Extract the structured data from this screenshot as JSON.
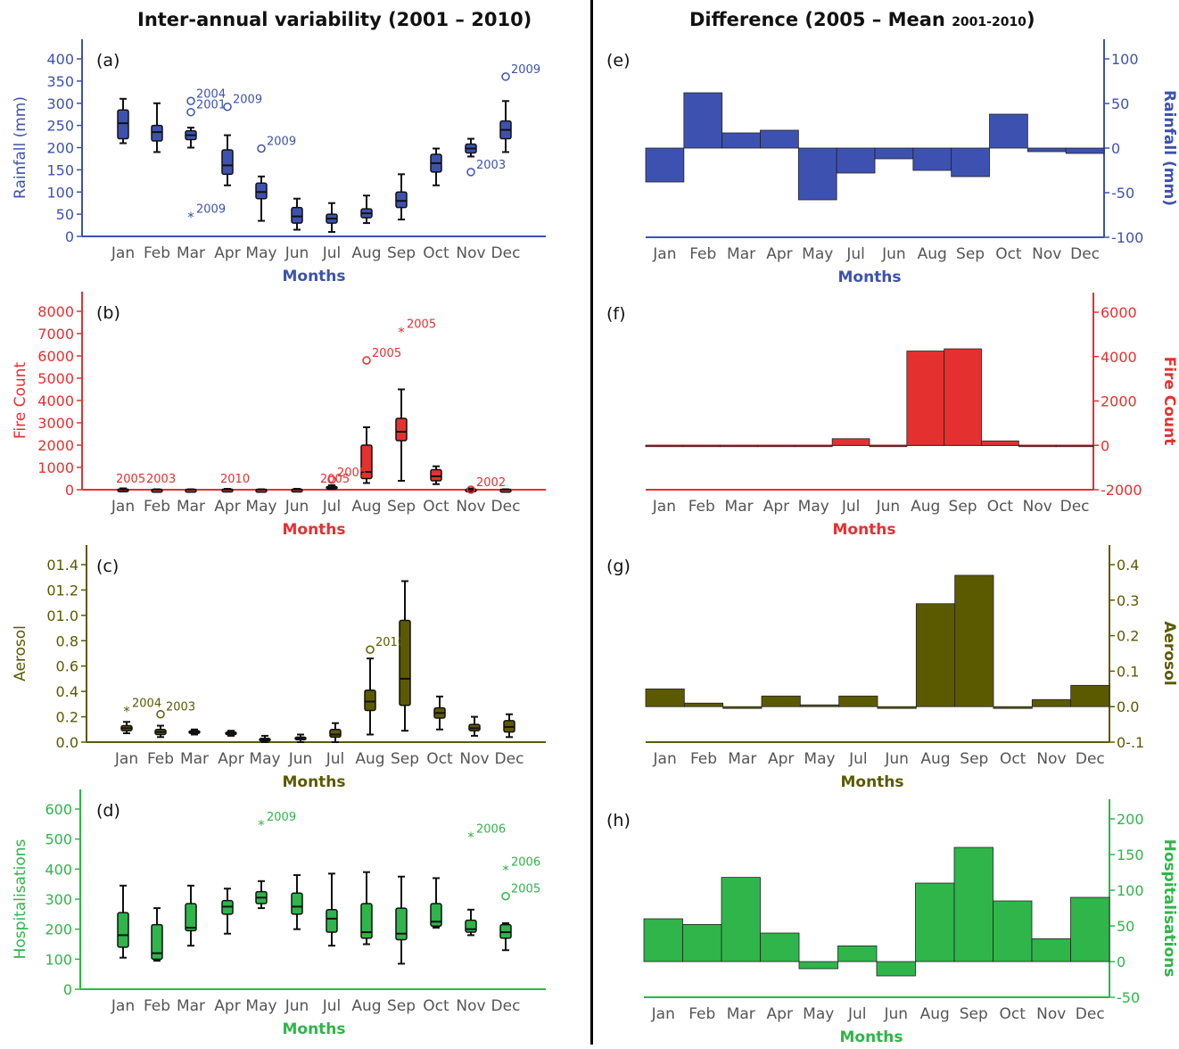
{
  "titles": {
    "left": "Inter-annual variability (2001 – 2010)",
    "right_main": "Difference (2005 – Mean ",
    "right_sub": "2001-2010",
    "right_end": ")"
  },
  "xlabel": "Months",
  "months_left": [
    "Jan",
    "Feb",
    "Mar",
    "Apr",
    "May",
    "Jun",
    "Jul",
    "Aug",
    "Sep",
    "Oct",
    "Nov",
    "Dec"
  ],
  "months_right_e": [
    "Jan",
    "Feb",
    "Mar",
    "Apr",
    "May",
    "Jul",
    "Jun",
    "Aug",
    "Sep",
    "Oct",
    "Nov",
    "Dec"
  ],
  "months_right": [
    "Jan",
    "Feb",
    "Mar",
    "Apr",
    "May",
    "Jul",
    "Jun",
    "Aug",
    "Sep",
    "Oct",
    "Nov",
    "Dec"
  ],
  "colors": {
    "rainfall": "#3d52b0",
    "fire": "#e53030",
    "aerosol": "#5c5a00",
    "hosp": "#2fb54a"
  },
  "chart_data": [
    {
      "panel": "(a)",
      "type": "box",
      "ylabel": "Rainfall (mm)",
      "xlabel": "Months",
      "ylim": [
        0,
        400
      ],
      "yticks": [
        0,
        50,
        100,
        150,
        200,
        250,
        300,
        350,
        400
      ],
      "ytick_labels": [
        "0",
        "50",
        "100",
        "150",
        "200",
        "250",
        "300",
        "350",
        "400"
      ],
      "boxes": [
        {
          "min": 210,
          "q1": 220,
          "median": 255,
          "q3": 285,
          "max": 310
        },
        {
          "min": 190,
          "q1": 215,
          "median": 235,
          "q3": 250,
          "max": 300
        },
        {
          "min": 200,
          "q1": 218,
          "median": 228,
          "q3": 238,
          "max": 245
        },
        {
          "min": 115,
          "q1": 140,
          "median": 160,
          "q3": 195,
          "max": 228
        },
        {
          "min": 35,
          "q1": 85,
          "median": 100,
          "q3": 120,
          "max": 135
        },
        {
          "min": 15,
          "q1": 30,
          "median": 45,
          "q3": 65,
          "max": 85
        },
        {
          "min": 10,
          "q1": 30,
          "median": 40,
          "q3": 50,
          "max": 75
        },
        {
          "min": 30,
          "q1": 42,
          "median": 52,
          "q3": 62,
          "max": 92
        },
        {
          "min": 38,
          "q1": 65,
          "median": 80,
          "q3": 100,
          "max": 140
        },
        {
          "min": 115,
          "q1": 145,
          "median": 165,
          "q3": 185,
          "max": 198
        },
        {
          "min": 180,
          "q1": 188,
          "median": 198,
          "q3": 208,
          "max": 220
        },
        {
          "min": 190,
          "q1": 220,
          "median": 240,
          "q3": 260,
          "max": 305
        }
      ],
      "outliers": [
        {
          "month": 2,
          "y": 305,
          "marker": "circle",
          "label": "2004"
        },
        {
          "month": 2,
          "y": 280,
          "marker": "circle",
          "label": "2001"
        },
        {
          "month": 2,
          "y": 45,
          "marker": "star",
          "label": "2009"
        },
        {
          "month": 3,
          "y": 292,
          "marker": "circle",
          "label": "2009"
        },
        {
          "month": 4,
          "y": 198,
          "marker": "circle",
          "label": "2009"
        },
        {
          "month": 10,
          "y": 145,
          "marker": "circle",
          "label": "2003"
        },
        {
          "month": 11,
          "y": 360,
          "marker": "circle",
          "label": "2009"
        }
      ]
    },
    {
      "panel": "(b)",
      "type": "box",
      "ylabel": "Fire Count",
      "xlabel": "Months",
      "ylim": [
        0,
        8000
      ],
      "yticks": [
        0,
        1000,
        2000,
        3000,
        4000,
        5000,
        6000,
        7000,
        8000
      ],
      "ytick_labels": [
        "0",
        "1000",
        "2000",
        "3000",
        "4000",
        "5000",
        "6000",
        "7000",
        "8000"
      ],
      "boxes": [
        {
          "min": 0,
          "q1": 0,
          "median": 10,
          "q3": 30,
          "max": 60
        },
        {
          "min": 0,
          "q1": 0,
          "median": 5,
          "q3": 10,
          "max": 20
        },
        {
          "min": 0,
          "q1": 0,
          "median": 5,
          "q3": 10,
          "max": 20
        },
        {
          "min": 0,
          "q1": 0,
          "median": 10,
          "q3": 20,
          "max": 40
        },
        {
          "min": 0,
          "q1": 0,
          "median": 5,
          "q3": 10,
          "max": 20
        },
        {
          "min": 0,
          "q1": 0,
          "median": 10,
          "q3": 20,
          "max": 40
        },
        {
          "min": 30,
          "q1": 60,
          "median": 100,
          "q3": 150,
          "max": 200
        },
        {
          "min": 300,
          "q1": 500,
          "median": 800,
          "q3": 2000,
          "max": 2800
        },
        {
          "min": 400,
          "q1": 2200,
          "median": 2600,
          "q3": 3200,
          "max": 4500
        },
        {
          "min": 250,
          "q1": 400,
          "median": 600,
          "q3": 900,
          "max": 1050
        },
        {
          "min": 0,
          "q1": 0,
          "median": 10,
          "q3": 30,
          "max": 60
        },
        {
          "min": 0,
          "q1": 0,
          "median": 5,
          "q3": 10,
          "max": 20
        }
      ],
      "outliers": [
        {
          "month": 0,
          "y": 0,
          "marker": "none",
          "label": "2005"
        },
        {
          "month": 0,
          "y": 0,
          "marker": "none",
          "label": "2003"
        },
        {
          "month": 3,
          "y": 0,
          "marker": "none",
          "label": "2010"
        },
        {
          "month": 5,
          "y": 0,
          "marker": "none",
          "label": "2005"
        },
        {
          "month": 6,
          "y": 450,
          "marker": "circle",
          "label": "2005"
        },
        {
          "month": 7,
          "y": 5800,
          "marker": "circle",
          "label": "2005"
        },
        {
          "month": 8,
          "y": 7100,
          "marker": "star",
          "label": "2005"
        },
        {
          "month": 10,
          "y": 0,
          "marker": "circle",
          "label": "2002"
        }
      ]
    },
    {
      "panel": "(c)",
      "type": "box",
      "ylabel": "Aerosol",
      "xlabel": "Months",
      "ylim": [
        0,
        1.4
      ],
      "yticks": [
        0,
        0.2,
        0.4,
        0.6,
        0.8,
        1.0,
        1.2,
        1.4
      ],
      "ytick_labels": [
        "0.0",
        "0.2",
        "0.4",
        "0.6",
        "0.8",
        "01.0",
        "01.2",
        "01.4"
      ],
      "boxes": [
        {
          "min": 0.07,
          "q1": 0.09,
          "median": 0.11,
          "q3": 0.13,
          "max": 0.16
        },
        {
          "min": 0.04,
          "q1": 0.06,
          "median": 0.08,
          "q3": 0.1,
          "max": 0.13
        },
        {
          "min": 0.06,
          "q1": 0.07,
          "median": 0.08,
          "q3": 0.09,
          "max": 0.1
        },
        {
          "min": 0.05,
          "q1": 0.06,
          "median": 0.07,
          "q3": 0.08,
          "max": 0.09
        },
        {
          "min": 0.0,
          "q1": 0.01,
          "median": 0.02,
          "q3": 0.03,
          "max": 0.05
        },
        {
          "min": 0.0,
          "q1": 0.02,
          "median": 0.03,
          "q3": 0.04,
          "max": 0.06
        },
        {
          "min": 0.0,
          "q1": 0.04,
          "median": 0.06,
          "q3": 0.1,
          "max": 0.15
        },
        {
          "min": 0.06,
          "q1": 0.25,
          "median": 0.32,
          "q3": 0.41,
          "max": 0.66
        },
        {
          "min": 0.09,
          "q1": 0.29,
          "median": 0.5,
          "q3": 0.96,
          "max": 1.27
        },
        {
          "min": 0.1,
          "q1": 0.19,
          "median": 0.23,
          "q3": 0.27,
          "max": 0.36
        },
        {
          "min": 0.05,
          "q1": 0.09,
          "median": 0.11,
          "q3": 0.14,
          "max": 0.2
        },
        {
          "min": 0.04,
          "q1": 0.08,
          "median": 0.12,
          "q3": 0.17,
          "max": 0.22
        }
      ],
      "outliers": [
        {
          "month": 0,
          "y": 0.25,
          "marker": "star",
          "label": "2004"
        },
        {
          "month": 1,
          "y": 0.22,
          "marker": "circle",
          "label": "2003"
        },
        {
          "month": 7,
          "y": 0.73,
          "marker": "circle",
          "label": "2010"
        }
      ]
    },
    {
      "panel": "(d)",
      "type": "box",
      "ylabel": "Hospitalisations",
      "xlabel": "Months",
      "ylim": [
        0,
        600
      ],
      "yticks": [
        0,
        100,
        200,
        300,
        400,
        500,
        600
      ],
      "ytick_labels": [
        "0",
        "100",
        "200",
        "300",
        "400",
        "500",
        "600"
      ],
      "boxes": [
        {
          "min": 105,
          "q1": 140,
          "median": 180,
          "q3": 255,
          "max": 345
        },
        {
          "min": 95,
          "q1": 100,
          "median": 120,
          "q3": 215,
          "max": 270
        },
        {
          "min": 145,
          "q1": 195,
          "median": 205,
          "q3": 285,
          "max": 345
        },
        {
          "min": 185,
          "q1": 250,
          "median": 275,
          "q3": 295,
          "max": 335
        },
        {
          "min": 270,
          "q1": 285,
          "median": 305,
          "q3": 325,
          "max": 360
        },
        {
          "min": 200,
          "q1": 250,
          "median": 275,
          "q3": 320,
          "max": 380
        },
        {
          "min": 145,
          "q1": 190,
          "median": 235,
          "q3": 265,
          "max": 385
        },
        {
          "min": 150,
          "q1": 170,
          "median": 190,
          "q3": 285,
          "max": 390
        },
        {
          "min": 85,
          "q1": 165,
          "median": 185,
          "q3": 270,
          "max": 375
        },
        {
          "min": 205,
          "q1": 210,
          "median": 225,
          "q3": 285,
          "max": 370
        },
        {
          "min": 180,
          "q1": 190,
          "median": 200,
          "q3": 230,
          "max": 265
        },
        {
          "min": 130,
          "q1": 170,
          "median": 190,
          "q3": 215,
          "max": 220
        }
      ],
      "outliers": [
        {
          "month": 4,
          "y": 550,
          "marker": "star",
          "label": "2009"
        },
        {
          "month": 10,
          "y": 510,
          "marker": "star",
          "label": "2006"
        },
        {
          "month": 11,
          "y": 400,
          "marker": "star",
          "label": "2006"
        },
        {
          "month": 11,
          "y": 310,
          "marker": "circle",
          "label": "2005"
        }
      ]
    },
    {
      "panel": "(e)",
      "type": "bar",
      "ylabel": "Rainfall (mm)",
      "xlabel": "Months",
      "ylim": [
        -100,
        100
      ],
      "yticks": [
        -100,
        -50,
        0,
        50,
        100
      ],
      "ytick_labels": [
        "-100",
        "-50",
        "0",
        "50",
        "100"
      ],
      "values": [
        -38,
        62,
        17,
        20,
        -58,
        -28,
        -12,
        -25,
        -32,
        38,
        -4,
        -6
      ]
    },
    {
      "panel": "(f)",
      "type": "bar",
      "ylabel": "Fire Count",
      "xlabel": "Months",
      "ylim": [
        -2000,
        6000
      ],
      "yticks": [
        -2000,
        0,
        2000,
        4000,
        6000
      ],
      "ytick_labels": [
        "-2000",
        "0",
        "2000",
        "4000",
        "6000"
      ],
      "values": [
        0,
        0,
        0,
        0,
        0,
        300,
        0,
        4250,
        4350,
        200,
        0,
        0
      ]
    },
    {
      "panel": "(g)",
      "type": "bar",
      "ylabel": "Aerosol",
      "xlabel": "Months",
      "ylim": [
        -0.1,
        0.4
      ],
      "yticks": [
        -0.1,
        0,
        0.1,
        0.2,
        0.3,
        0.4
      ],
      "ytick_labels": [
        "0-.1",
        "0.0",
        "0.1",
        "0.2",
        "0.3",
        "0.4"
      ],
      "values": [
        0.05,
        0.01,
        -0.005,
        0.03,
        0.005,
        0.03,
        -0.005,
        0.29,
        0.37,
        -0.005,
        0.02,
        0.06
      ]
    },
    {
      "panel": "(h)",
      "type": "bar",
      "ylabel": "Hospitalisations",
      "xlabel": "Months",
      "ylim": [
        -50,
        200
      ],
      "yticks": [
        -50,
        0,
        50,
        100,
        150,
        200
      ],
      "ytick_labels": [
        "-50",
        "0",
        "50",
        "100",
        "150",
        "200"
      ],
      "values": [
        60,
        52,
        118,
        40,
        -10,
        22,
        -20,
        110,
        160,
        85,
        32,
        90
      ]
    }
  ]
}
